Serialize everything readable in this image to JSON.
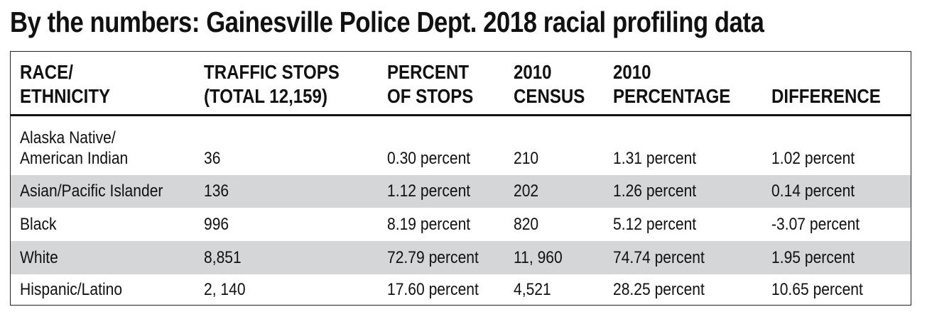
{
  "title": "By the numbers: Gainesville Police Dept. 2018 racial profiling data",
  "chart_data": {
    "type": "table",
    "columns": [
      [
        "RACE/",
        "ETHNICITY"
      ],
      [
        "TRAFFIC STOPS",
        "(TOTAL 12,159)"
      ],
      [
        "PERCENT",
        "OF STOPS"
      ],
      [
        "2010",
        "CENSUS"
      ],
      [
        "2010",
        "PERCENTAGE"
      ],
      [
        "",
        "DIFFERENCE"
      ]
    ],
    "rows": [
      {
        "race": [
          "Alaska Native/",
          "American Indian"
        ],
        "stops": "36",
        "pct_stops": "0.30 percent",
        "census": "210",
        "census_pct": "1.31 percent",
        "difference": "1.02 percent"
      },
      {
        "race": [
          "Asian/Pacific Islander"
        ],
        "stops": "136",
        "pct_stops": "1.12 percent",
        "census": "202",
        "census_pct": "1.26 percent",
        "difference": "0.14 percent"
      },
      {
        "race": [
          "Black"
        ],
        "stops": "996",
        "pct_stops": "8.19 percent",
        "census": "820",
        "census_pct": "5.12 percent",
        "difference": "-3.07 percent"
      },
      {
        "race": [
          "White"
        ],
        "stops": "8,851",
        "pct_stops": "72.79 percent",
        "census": "11, 960",
        "census_pct": "74.74 percent",
        "difference": "1.95 percent"
      },
      {
        "race": [
          "Hispanic/Latino"
        ],
        "stops": "2, 140",
        "pct_stops": "17.60 percent",
        "census": "4,521",
        "census_pct": "28.25 percent",
        "difference": "10.65 percent"
      }
    ],
    "row_shading_color": "#d5d6d8"
  }
}
